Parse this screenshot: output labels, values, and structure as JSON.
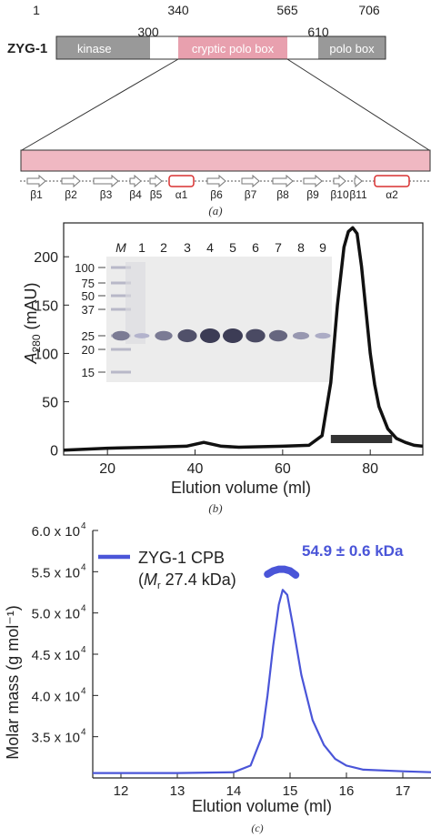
{
  "panel_a": {
    "protein_label": "ZYG-1",
    "positions": [
      "1",
      "300",
      "340",
      "565",
      "610",
      "706"
    ],
    "domains": [
      {
        "label": "kinase",
        "color": "#999999"
      },
      {
        "label": "",
        "color": "#ffffff"
      },
      {
        "label": "cryptic polo box",
        "color": "#e8a0ae"
      },
      {
        "label": "",
        "color": "#ffffff"
      },
      {
        "label": "polo box",
        "color": "#999999"
      }
    ],
    "secondary_structure": [
      {
        "label": "β1",
        "kind": "strand"
      },
      {
        "label": "β2",
        "kind": "strand"
      },
      {
        "label": "β3",
        "kind": "strand"
      },
      {
        "label": "β4",
        "kind": "strand"
      },
      {
        "label": "β5",
        "kind": "strand"
      },
      {
        "label": "α1",
        "kind": "helix"
      },
      {
        "label": "β6",
        "kind": "strand"
      },
      {
        "label": "β7",
        "kind": "strand"
      },
      {
        "label": "β8",
        "kind": "strand"
      },
      {
        "label": "β9",
        "kind": "strand"
      },
      {
        "label": "β10",
        "kind": "strand"
      },
      {
        "label": "β11",
        "kind": "strand"
      },
      {
        "label": "α2",
        "kind": "helix"
      }
    ],
    "caption": "(a)",
    "pink": "#f0b8c2",
    "helix_color": "#d93030"
  },
  "panel_b": {
    "caption": "(b)",
    "gel": {
      "lanes": [
        "M",
        "1",
        "2",
        "3",
        "4",
        "5",
        "6",
        "7",
        "8",
        "9"
      ],
      "markers": [
        "100",
        "75",
        "50",
        "37",
        "25",
        "20",
        "15"
      ],
      "band_intensity": [
        0.55,
        0.15,
        0.55,
        0.85,
        1.0,
        1.0,
        0.9,
        0.7,
        0.35,
        0.2
      ]
    }
  },
  "panel_c": {
    "caption": "(c)",
    "legend_line1": "ZYG-1 CPB",
    "legend_mr": "M",
    "legend_r": "r",
    "legend_rest": " 27.4 kDa)",
    "annotation": "54.9 ± 0.6 kDa",
    "color": "#4a55d8"
  },
  "chart_data": [
    {
      "type": "line",
      "xlabel": "Elution volume (ml)",
      "ylabel": "A280 (mAU)",
      "ylabel_main": "A",
      "ylabel_sub": "280",
      "ylabel_unit": " (mAU)",
      "xlim": [
        10,
        92
      ],
      "ylim": [
        -5,
        235
      ],
      "xticks": [
        20,
        40,
        60,
        80
      ],
      "yticks": [
        0,
        50,
        100,
        150,
        200
      ],
      "series": [
        {
          "x": [
            10,
            20,
            30,
            38,
            40,
            42,
            44,
            46,
            50,
            60,
            66,
            69,
            71,
            72.5,
            74,
            75,
            76,
            77,
            78,
            79,
            80,
            81,
            82,
            84,
            86,
            88,
            90,
            92
          ],
          "y": [
            0,
            2,
            3,
            4,
            6,
            8,
            6,
            4,
            3,
            4,
            5,
            15,
            70,
            150,
            210,
            226,
            230,
            224,
            190,
            145,
            100,
            68,
            45,
            22,
            12,
            8,
            5,
            4
          ]
        }
      ],
      "fraction_bar": [
        71,
        85
      ],
      "fraction_bar_color": "#333333"
    },
    {
      "type": "line",
      "xlabel": "Elution volume (ml)",
      "ylabel": "Molar mass (g mol⁻¹)",
      "xlim": [
        11.5,
        17.5
      ],
      "ylim": [
        30000,
        60000
      ],
      "xticks": [
        12,
        13,
        14,
        15,
        16,
        17
      ],
      "yticks": [
        35000,
        40000,
        45000,
        50000,
        55000,
        60000
      ],
      "ytick_labels": [
        "3.5 x 10",
        "4.0 x 10",
        "4.5 x 10",
        "5.0 x 10",
        "5.5 x 10",
        "6.0 x 10"
      ],
      "ytick_exp": "4",
      "series": [
        {
          "name": "ZYG-1 CPB",
          "x": [
            11.5,
            13,
            14,
            14.3,
            14.5,
            14.6,
            14.7,
            14.8,
            14.87,
            14.95,
            15.05,
            15.2,
            15.4,
            15.6,
            15.8,
            16,
            16.3,
            17,
            17.5
          ],
          "y": [
            30600,
            30600,
            30700,
            31500,
            35000,
            40000,
            46000,
            51000,
            52800,
            52200,
            48500,
            42500,
            37000,
            34000,
            32300,
            31500,
            31000,
            30800,
            30700
          ]
        }
      ],
      "mass_x": [
        14.6,
        14.7,
        14.8,
        14.9,
        15.0,
        15.1
      ],
      "mass_y": [
        54700,
        55100,
        55300,
        55300,
        55100,
        54600
      ]
    }
  ]
}
